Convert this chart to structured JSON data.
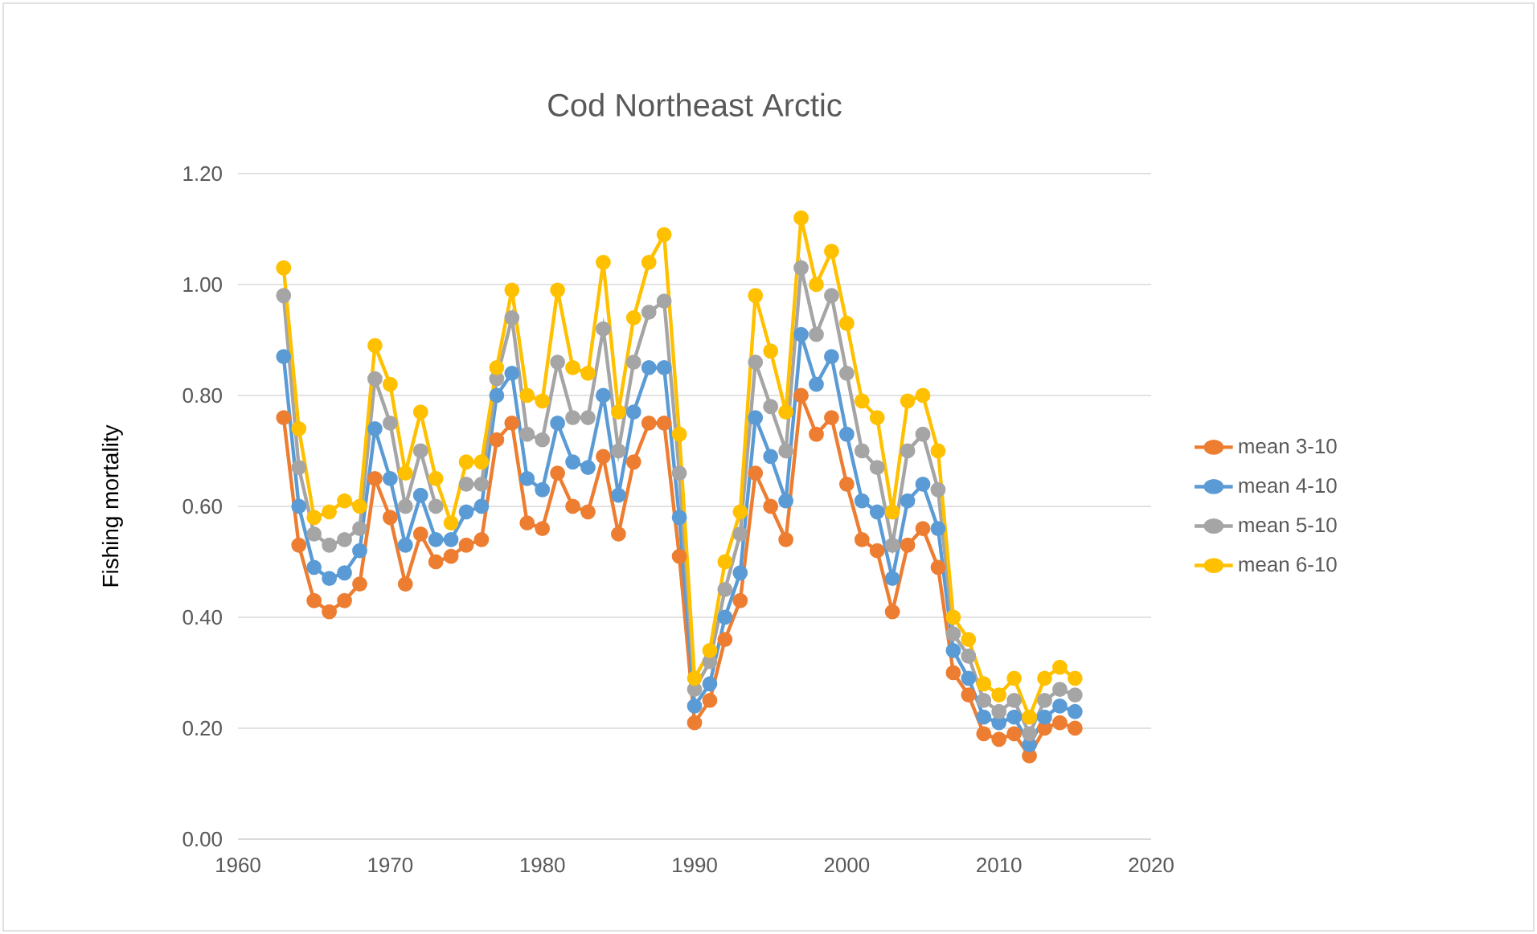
{
  "chart_data": {
    "type": "line",
    "title": "Cod Northeast Arctic",
    "ylabel": "Fishing mortality",
    "x": [
      1963,
      1964,
      1965,
      1966,
      1967,
      1968,
      1969,
      1970,
      1971,
      1972,
      1973,
      1974,
      1975,
      1976,
      1977,
      1978,
      1979,
      1980,
      1981,
      1982,
      1983,
      1984,
      1985,
      1986,
      1987,
      1988,
      1989,
      1990,
      1991,
      1992,
      1993,
      1994,
      1995,
      1996,
      1997,
      1998,
      1999,
      2000,
      2001,
      2002,
      2003,
      2004,
      2005,
      2006,
      2007,
      2008,
      2009,
      2010,
      2011,
      2012,
      2013,
      2014,
      2015
    ],
    "series": [
      {
        "name": "mean 3-10",
        "color": "#ed7d31",
        "values": [
          0.76,
          0.53,
          0.43,
          0.41,
          0.43,
          0.46,
          0.65,
          0.58,
          0.46,
          0.55,
          0.5,
          0.51,
          0.53,
          0.54,
          0.72,
          0.75,
          0.57,
          0.56,
          0.66,
          0.6,
          0.59,
          0.69,
          0.55,
          0.68,
          0.75,
          0.75,
          0.51,
          0.21,
          0.25,
          0.36,
          0.43,
          0.66,
          0.6,
          0.54,
          0.8,
          0.73,
          0.76,
          0.64,
          0.54,
          0.52,
          0.41,
          0.53,
          0.56,
          0.49,
          0.3,
          0.26,
          0.19,
          0.18,
          0.19,
          0.15,
          0.2,
          0.21,
          0.2
        ]
      },
      {
        "name": "mean 4-10",
        "color": "#5b9bd5",
        "values": [
          0.87,
          0.6,
          0.49,
          0.47,
          0.48,
          0.52,
          0.74,
          0.65,
          0.53,
          0.62,
          0.54,
          0.54,
          0.59,
          0.6,
          0.8,
          0.84,
          0.65,
          0.63,
          0.75,
          0.68,
          0.67,
          0.8,
          0.62,
          0.77,
          0.85,
          0.85,
          0.58,
          0.24,
          0.28,
          0.4,
          0.48,
          0.76,
          0.69,
          0.61,
          0.91,
          0.82,
          0.87,
          0.73,
          0.61,
          0.59,
          0.47,
          0.61,
          0.64,
          0.56,
          0.34,
          0.29,
          0.22,
          0.21,
          0.22,
          0.17,
          0.22,
          0.24,
          0.23
        ]
      },
      {
        "name": "mean 5-10",
        "color": "#a5a5a5",
        "values": [
          0.98,
          0.67,
          0.55,
          0.53,
          0.54,
          0.56,
          0.83,
          0.75,
          0.6,
          0.7,
          0.6,
          null,
          0.64,
          0.64,
          0.83,
          0.94,
          0.73,
          0.72,
          0.86,
          0.76,
          0.76,
          0.92,
          0.7,
          0.86,
          0.95,
          0.97,
          0.66,
          0.27,
          0.32,
          0.45,
          0.55,
          0.86,
          0.78,
          0.7,
          1.03,
          0.91,
          0.98,
          0.84,
          0.7,
          0.67,
          0.53,
          0.7,
          0.73,
          0.63,
          0.37,
          0.33,
          0.25,
          0.23,
          0.25,
          0.19,
          0.25,
          0.27,
          0.26
        ]
      },
      {
        "name": "mean 6-10",
        "color": "#ffc000",
        "values": [
          1.03,
          0.74,
          0.58,
          0.59,
          0.61,
          0.6,
          0.89,
          0.82,
          0.66,
          0.77,
          0.65,
          0.57,
          0.68,
          0.68,
          0.85,
          0.99,
          0.8,
          0.79,
          0.99,
          0.85,
          0.84,
          1.04,
          0.77,
          0.94,
          1.04,
          1.09,
          0.73,
          0.29,
          0.34,
          0.5,
          0.59,
          0.98,
          0.88,
          0.77,
          1.12,
          1.0,
          1.06,
          0.93,
          0.79,
          0.76,
          0.59,
          0.79,
          0.8,
          0.7,
          0.4,
          0.36,
          0.28,
          0.26,
          0.29,
          0.22,
          0.29,
          0.31,
          0.29
        ]
      }
    ],
    "xlim": [
      1960,
      2020
    ],
    "ylim": [
      0,
      1.2
    ],
    "xticks": [
      1960,
      1970,
      1980,
      1990,
      2000,
      2010,
      2020
    ],
    "yticks": [
      {
        "value": 0,
        "label": "0.00"
      },
      {
        "value": 0.2,
        "label": "0.20"
      },
      {
        "value": 0.4,
        "label": "0.40"
      },
      {
        "value": 0.6,
        "label": "0.60"
      },
      {
        "value": 0.8,
        "label": "0.80"
      },
      {
        "value": 1.0,
        "label": "1.00"
      },
      {
        "value": 1.2,
        "label": "1.20"
      }
    ],
    "grid": "y",
    "legend": "right",
    "marker": "circle",
    "line_style": "solid"
  }
}
